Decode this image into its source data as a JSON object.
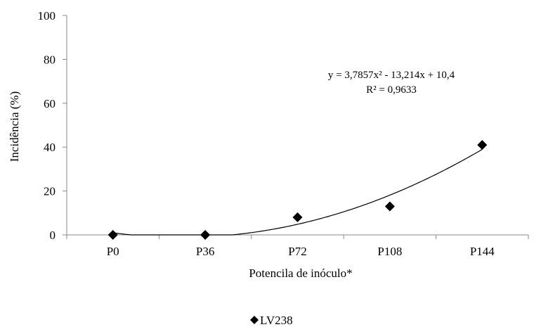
{
  "chart_data": {
    "type": "scatter",
    "categories": [
      "P0",
      "P36",
      "P72",
      "P108",
      "P144"
    ],
    "series": [
      {
        "name": "LV238",
        "values": [
          0,
          0,
          8,
          13,
          41
        ],
        "marker": "diamond",
        "color": "#000000"
      }
    ],
    "trendline": {
      "type": "polynomial",
      "coefficients": [
        3.7857,
        -13.214,
        10.4
      ],
      "equation_text": "y = 3,7857x² - 13,214x + 10,4",
      "r2_text": "R² = 0,9633"
    },
    "xlabel": "Potencila de inóculo*",
    "ylabel": "Incidência (%)",
    "ylim": [
      0,
      100
    ],
    "yticks": [
      "0",
      "20",
      "40",
      "60",
      "80",
      "100"
    ],
    "legend": {
      "label": "LV238",
      "position": "bottom"
    },
    "grid": false
  }
}
